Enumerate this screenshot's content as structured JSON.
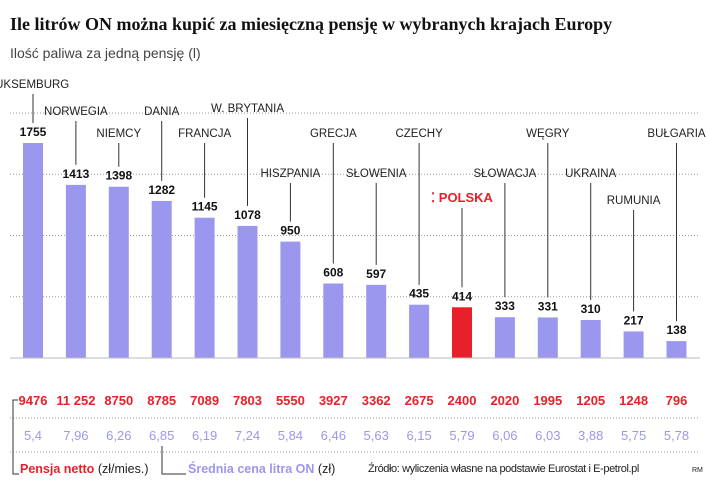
{
  "title": "Ile litrów ON można kupić za miesięczną pensję w wybranych krajach Europy",
  "subtitle": "Ilość paliwa za jedną pensję (l)",
  "chart_data": {
    "type": "bar",
    "title": "Ile litrów ON można kupić za miesięczną pensję w wybranych krajach Europy",
    "ylabel": "Ilość paliwa za jedną pensję (l)",
    "ylim": [
      0,
      2000
    ],
    "grid": true,
    "categories": [
      "LUKSEMBURG",
      "NORWEGIA",
      "NIEMCY",
      "DANIA",
      "FRANCJA",
      "W. BRYTANIA",
      "HISZPANIA",
      "GRECJA",
      "SŁOWENIA",
      "CZECHY",
      "POLSKA",
      "SŁOWACJA",
      "WĘGRY",
      "UKRAINA",
      "RUMUNIA",
      "BUŁGARIA"
    ],
    "values": [
      1755,
      1413,
      1398,
      1282,
      1145,
      1078,
      950,
      608,
      597,
      435,
      414,
      333,
      331,
      310,
      217,
      138
    ],
    "value_labels": [
      "1755",
      "1413",
      "1398",
      "1282",
      "1145",
      "1078",
      "950",
      "608",
      "597",
      "435",
      "414",
      "333",
      "331",
      "310",
      "217",
      "138"
    ],
    "highlight": "POLSKA",
    "salary": [
      "9476",
      "11 252",
      "8750",
      "8785",
      "7089",
      "7803",
      "5550",
      "3927",
      "3362",
      "2675",
      "2400",
      "2020",
      "1995",
      "1205",
      "1248",
      "796"
    ],
    "price": [
      "5,4",
      "7,96",
      "6,26",
      "6,85",
      "6,19",
      "7,24",
      "5,84",
      "6,46",
      "5,63",
      "6,15",
      "5,79",
      "6,06",
      "6,03",
      "3,88",
      "5,75",
      "5,78"
    ]
  },
  "colors": {
    "bar": "#9c97ee",
    "highlight": "#e8202a",
    "salary": "#e8202a",
    "price": "#9c97ee"
  },
  "legend": {
    "salary_label": "Pensja netto",
    "salary_unit": "(zł/mies.)",
    "price_label": "Średnia cena litra ON",
    "price_unit": "(zł)"
  },
  "source": "Źródło: wyliczenia własne na podstawie Eurostat i E-petrol.pl",
  "credit": "RM"
}
